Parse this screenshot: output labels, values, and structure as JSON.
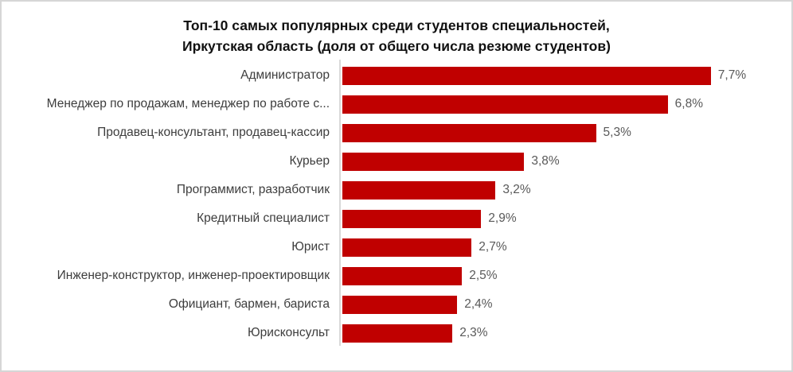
{
  "chart_data": {
    "type": "bar",
    "orientation": "horizontal",
    "title": "Топ-10 самых популярных среди студентов специальностей, Иркутская область (доля от общего числа резюме студентов)",
    "title_lines": [
      "Топ-10 самых популярных среди студентов специальностей,",
      "Иркутская область (доля от общего числа резюме студентов)"
    ],
    "categories": [
      "Администратор",
      "Менеджер по продажам, менеджер по работе с...",
      "Продавец-консультант, продавец-кассир",
      "Курьер",
      "Программист, разработчик",
      "Кредитный специалист",
      "Юрист",
      "Инженер-конструктор, инженер-проектировщик",
      "Официант, бармен, бариста",
      "Юрисконсульт"
    ],
    "values": [
      7.7,
      6.8,
      5.3,
      3.8,
      3.2,
      2.9,
      2.7,
      2.5,
      2.4,
      2.3
    ],
    "value_labels": [
      "7,7%",
      "6,8%",
      "5,3%",
      "3,8%",
      "3,2%",
      "2,9%",
      "2,7%",
      "2,5%",
      "2,4%",
      "2,3%"
    ],
    "bar_color": "#C00000",
    "axis_line_color": "#d9d9d9",
    "xlim": [
      0,
      9.4
    ],
    "grid": false,
    "legend": false,
    "data_labels": true
  }
}
